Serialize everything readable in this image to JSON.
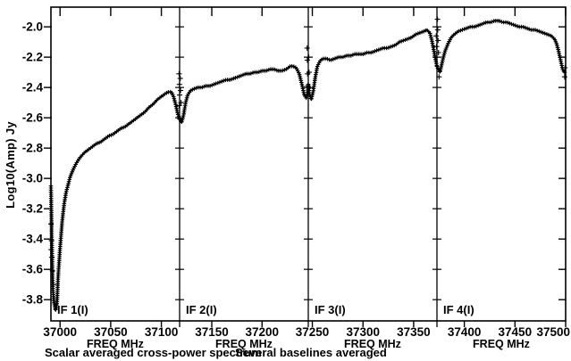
{
  "chart_data": {
    "type": "line",
    "title": "Scalar averaged cross-power spectrum",
    "subtitle": "Several baselines averaged",
    "ylabel": "Log10(Amp) Jy",
    "xlabel": "FREQ MHz",
    "ylim": [
      -3.94,
      -1.87
    ],
    "yticks": [
      -2.0,
      -2.2,
      -2.4,
      -2.6,
      -2.8,
      -3.0,
      -3.2,
      -3.4,
      -3.6,
      -3.8
    ],
    "marker": "+",
    "color": "#000000",
    "background": "#ffffff",
    "grid": false,
    "legend": null,
    "panels": [
      {
        "label": "IF 1(I)",
        "xlim": [
          36991,
          37118
        ],
        "xticks": [
          37000,
          37050,
          37100
        ],
        "points": [
          [
            36991,
            -3.05
          ],
          [
            36991.5,
            -3.25
          ],
          [
            36992,
            -3.45
          ],
          [
            36992.5,
            -3.62
          ],
          [
            36993,
            -3.74
          ],
          [
            36994,
            -3.82
          ],
          [
            36995.5,
            -3.87
          ],
          [
            36997,
            -3.83
          ],
          [
            36998,
            -3.66
          ],
          [
            37000,
            -3.46
          ],
          [
            37002,
            -3.29
          ],
          [
            37004,
            -3.17
          ],
          [
            37006,
            -3.09
          ],
          [
            37008,
            -3.04
          ],
          [
            37010,
            -2.99
          ],
          [
            37013,
            -2.94
          ],
          [
            37016,
            -2.9
          ],
          [
            37020,
            -2.86
          ],
          [
            37024,
            -2.83
          ],
          [
            37028,
            -2.81
          ],
          [
            37032,
            -2.79
          ],
          [
            37036,
            -2.77
          ],
          [
            37040,
            -2.76
          ],
          [
            37044,
            -2.74
          ],
          [
            37048,
            -2.72
          ],
          [
            37052,
            -2.71
          ],
          [
            37056,
            -2.69
          ],
          [
            37060,
            -2.67
          ],
          [
            37064,
            -2.66
          ],
          [
            37068,
            -2.64
          ],
          [
            37072,
            -2.62
          ],
          [
            37076,
            -2.6
          ],
          [
            37080,
            -2.58
          ],
          [
            37084,
            -2.56
          ],
          [
            37088,
            -2.53
          ],
          [
            37092,
            -2.51
          ],
          [
            37096,
            -2.48
          ],
          [
            37100,
            -2.46
          ],
          [
            37104,
            -2.44
          ],
          [
            37107,
            -2.43
          ],
          [
            37110,
            -2.43
          ],
          [
            37112,
            -2.46
          ],
          [
            37114,
            -2.51
          ],
          [
            37116,
            -2.57
          ],
          [
            37118,
            -2.61
          ]
        ],
        "scatter": [
          [
            36991,
            -3.3
          ],
          [
            36991.5,
            -3.41
          ],
          [
            36992,
            -3.52
          ],
          [
            36992.5,
            -3.61
          ],
          [
            36993.5,
            -3.7
          ],
          [
            36991.2,
            -3.47
          ],
          [
            37117.5,
            -2.31
          ],
          [
            37117.8,
            -2.38
          ],
          [
            37118,
            -2.45
          ],
          [
            37117.6,
            -2.52
          ]
        ]
      },
      {
        "label": "IF 2(I)",
        "xlim": [
          37118,
          37246
        ],
        "xticks": [
          37150,
          37200
        ],
        "points": [
          [
            37118,
            -2.61
          ],
          [
            37120,
            -2.63
          ],
          [
            37122,
            -2.58
          ],
          [
            37124,
            -2.5
          ],
          [
            37126,
            -2.45
          ],
          [
            37129,
            -2.42
          ],
          [
            37132,
            -2.41
          ],
          [
            37136,
            -2.4
          ],
          [
            37140,
            -2.4
          ],
          [
            37144,
            -2.39
          ],
          [
            37148,
            -2.39
          ],
          [
            37152,
            -2.38
          ],
          [
            37156,
            -2.37
          ],
          [
            37160,
            -2.36
          ],
          [
            37164,
            -2.35
          ],
          [
            37168,
            -2.35
          ],
          [
            37172,
            -2.34
          ],
          [
            37176,
            -2.33
          ],
          [
            37180,
            -2.32
          ],
          [
            37184,
            -2.31
          ],
          [
            37188,
            -2.31
          ],
          [
            37192,
            -2.3
          ],
          [
            37196,
            -2.3
          ],
          [
            37200,
            -2.29
          ],
          [
            37204,
            -2.29
          ],
          [
            37208,
            -2.28
          ],
          [
            37212,
            -2.28
          ],
          [
            37216,
            -2.29
          ],
          [
            37220,
            -2.29
          ],
          [
            37224,
            -2.28
          ],
          [
            37228,
            -2.26
          ],
          [
            37231,
            -2.26
          ],
          [
            37234,
            -2.27
          ],
          [
            37237,
            -2.31
          ],
          [
            37240,
            -2.39
          ],
          [
            37242,
            -2.45
          ],
          [
            37244,
            -2.47
          ],
          [
            37245,
            -2.44
          ],
          [
            37246,
            -2.38
          ]
        ],
        "scatter": [
          [
            37118.6,
            -2.34
          ],
          [
            37119,
            -2.42
          ],
          [
            37119.4,
            -2.5
          ],
          [
            37244.8,
            -2.14
          ],
          [
            37245,
            -2.22
          ],
          [
            37245.3,
            -2.31
          ],
          [
            37245.6,
            -2.39
          ]
        ]
      },
      {
        "label": "IF 3(I)",
        "xlim": [
          37246,
          37373
        ],
        "xticks": [
          37250,
          37300,
          37350
        ],
        "points": [
          [
            37246,
            -2.38
          ],
          [
            37247,
            -2.44
          ],
          [
            37249,
            -2.48
          ],
          [
            37251,
            -2.42
          ],
          [
            37253,
            -2.33
          ],
          [
            37255,
            -2.26
          ],
          [
            37258,
            -2.22
          ],
          [
            37261,
            -2.21
          ],
          [
            37264,
            -2.21
          ],
          [
            37268,
            -2.22
          ],
          [
            37272,
            -2.21
          ],
          [
            37276,
            -2.2
          ],
          [
            37280,
            -2.2
          ],
          [
            37284,
            -2.19
          ],
          [
            37288,
            -2.19
          ],
          [
            37292,
            -2.18
          ],
          [
            37296,
            -2.18
          ],
          [
            37300,
            -2.18
          ],
          [
            37304,
            -2.17
          ],
          [
            37308,
            -2.17
          ],
          [
            37312,
            -2.16
          ],
          [
            37316,
            -2.15
          ],
          [
            37320,
            -2.14
          ],
          [
            37324,
            -2.14
          ],
          [
            37328,
            -2.13
          ],
          [
            37332,
            -2.12
          ],
          [
            37336,
            -2.1
          ],
          [
            37340,
            -2.09
          ],
          [
            37344,
            -2.08
          ],
          [
            37348,
            -2.07
          ],
          [
            37352,
            -2.05
          ],
          [
            37356,
            -2.04
          ],
          [
            37360,
            -2.03
          ],
          [
            37363,
            -2.02
          ],
          [
            37366,
            -2.04
          ],
          [
            37368,
            -2.09
          ],
          [
            37370,
            -2.16
          ],
          [
            37372,
            -2.23
          ],
          [
            37373,
            -2.26
          ]
        ],
        "scatter": [
          [
            37246.5,
            -2.2
          ],
          [
            37246.8,
            -2.3
          ],
          [
            37247.2,
            -2.4
          ],
          [
            37372.3,
            -2.06
          ],
          [
            37372.6,
            -2.13
          ],
          [
            37372.9,
            -2.2
          ]
        ]
      },
      {
        "label": "IF 4(I)",
        "xlim": [
          37373,
          37500
        ],
        "xticks": [
          37400,
          37450,
          37500
        ],
        "points": [
          [
            37373,
            -2.26
          ],
          [
            37375,
            -2.29
          ],
          [
            37376,
            -2.3
          ],
          [
            37377,
            -2.27
          ],
          [
            37379,
            -2.21
          ],
          [
            37381,
            -2.16
          ],
          [
            37384,
            -2.11
          ],
          [
            37387,
            -2.07
          ],
          [
            37390,
            -2.05
          ],
          [
            37394,
            -2.03
          ],
          [
            37398,
            -2.02
          ],
          [
            37402,
            -2.01
          ],
          [
            37406,
            -2.0
          ],
          [
            37410,
            -2.0
          ],
          [
            37414,
            -1.99
          ],
          [
            37418,
            -1.98
          ],
          [
            37422,
            -1.97
          ],
          [
            37426,
            -1.97
          ],
          [
            37430,
            -1.96
          ],
          [
            37434,
            -1.96
          ],
          [
            37438,
            -1.97
          ],
          [
            37442,
            -1.97
          ],
          [
            37446,
            -1.98
          ],
          [
            37450,
            -1.99
          ],
          [
            37454,
            -2.0
          ],
          [
            37458,
            -2.0
          ],
          [
            37462,
            -2.01
          ],
          [
            37466,
            -2.02
          ],
          [
            37470,
            -2.02
          ],
          [
            37474,
            -2.03
          ],
          [
            37478,
            -2.04
          ],
          [
            37482,
            -2.05
          ],
          [
            37486,
            -2.06
          ],
          [
            37489,
            -2.08
          ],
          [
            37491,
            -2.11
          ],
          [
            37493,
            -2.16
          ],
          [
            37495,
            -2.22
          ],
          [
            37497,
            -2.28
          ],
          [
            37499,
            -2.3
          ]
        ],
        "scatter": [
          [
            37373.5,
            -1.95
          ],
          [
            37373.8,
            -2.02
          ],
          [
            37374.1,
            -2.09
          ],
          [
            37374.5,
            -2.17
          ],
          [
            37375,
            -2.33
          ],
          [
            37499,
            -2.33
          ],
          [
            37499.4,
            -2.27
          ]
        ]
      }
    ]
  }
}
